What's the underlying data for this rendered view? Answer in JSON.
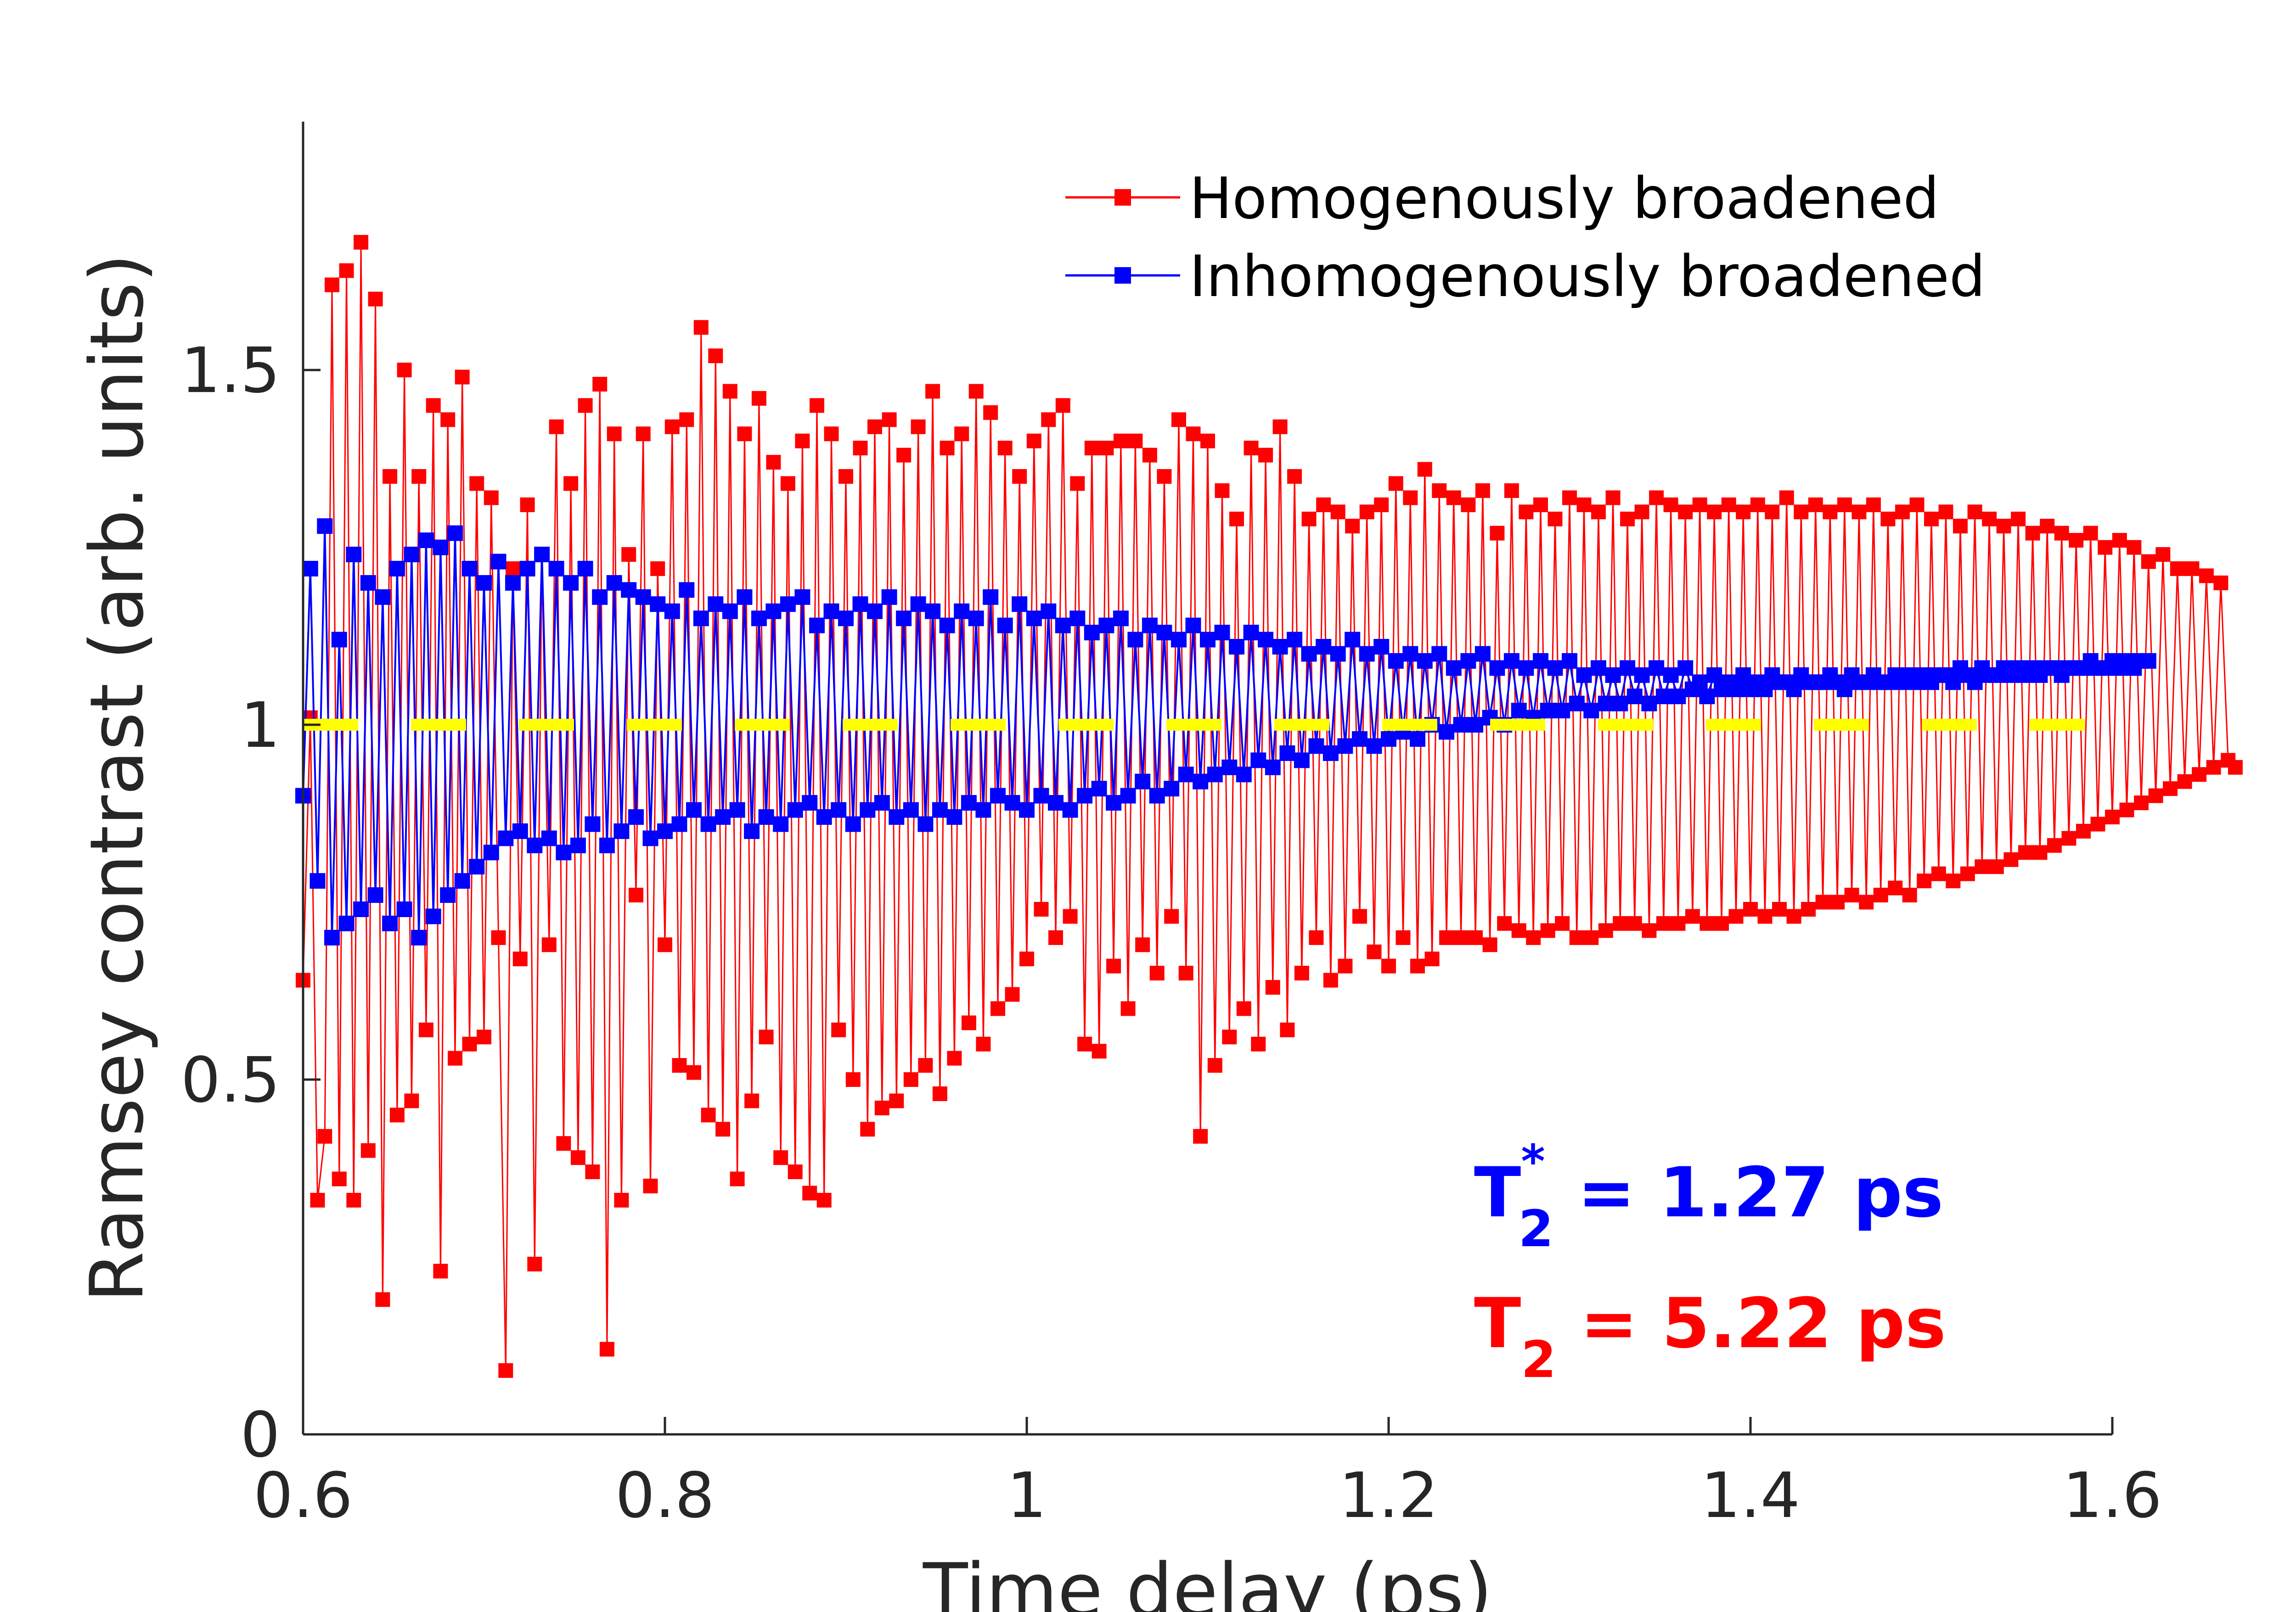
{
  "chart_data": {
    "type": "line",
    "xlabel": "Time delay (ps)",
    "ylabel": "Ramsey contrast (arb. units)",
    "xlim": [
      0.6,
      1.6
    ],
    "ylim": [
      0,
      1.85
    ],
    "x_ticks": [
      "0.6",
      "0.8",
      "1",
      "1.2",
      "1.4",
      "1.6"
    ],
    "y_ticks": [
      "0",
      "0.5",
      "1",
      "1.5"
    ],
    "x_tick_values": [
      0.6,
      0.8,
      1.0,
      1.2,
      1.4,
      1.6
    ],
    "y_tick_values": [
      0,
      0.5,
      1.0,
      1.5
    ],
    "grid": false,
    "legend_position": "top-right",
    "x_start": 0.6,
    "x_step": 0.004,
    "series": [
      {
        "name": "Homogenously broadened",
        "color": "#ff0000",
        "marker": "square",
        "values": [
          0.64,
          1.01,
          0.33,
          0.42,
          1.62,
          0.36,
          1.64,
          0.33,
          1.68,
          0.4,
          1.6,
          0.19,
          1.35,
          0.45,
          1.5,
          0.47,
          1.35,
          0.57,
          1.45,
          0.23,
          1.43,
          0.53,
          1.49,
          0.55,
          1.34,
          0.56,
          1.32,
          0.7,
          0.09,
          1.22,
          0.67,
          1.31,
          0.24,
          1.24,
          0.69,
          1.42,
          0.41,
          1.34,
          0.39,
          1.45,
          0.37,
          1.48,
          0.12,
          1.41,
          0.33,
          1.24,
          0.76,
          1.41,
          0.35,
          1.22,
          0.69,
          1.42,
          0.52,
          1.43,
          0.51,
          1.56,
          0.45,
          1.52,
          0.43,
          1.47,
          0.36,
          1.41,
          0.47,
          1.46,
          0.56,
          1.37,
          0.39,
          1.34,
          0.37,
          1.4,
          0.34,
          1.45,
          0.33,
          1.41,
          0.57,
          1.35,
          0.5,
          1.39,
          0.43,
          1.42,
          0.46,
          1.43,
          0.47,
          1.38,
          0.5,
          1.42,
          0.52,
          1.47,
          0.48,
          1.39,
          0.53,
          1.41,
          0.58,
          1.47,
          0.55,
          1.44,
          0.6,
          1.39,
          0.62,
          1.35,
          0.67,
          1.4,
          0.74,
          1.43,
          0.7,
          1.45,
          0.73,
          1.34,
          0.55,
          1.39,
          0.54,
          1.39,
          0.66,
          1.4,
          0.6,
          1.4,
          0.69,
          1.38,
          0.65,
          1.35,
          0.73,
          1.43,
          0.65,
          1.41,
          0.42,
          1.4,
          0.52,
          1.33,
          0.56,
          1.29,
          0.6,
          1.39,
          0.55,
          1.38,
          0.63,
          1.42,
          0.57,
          1.35,
          0.65,
          1.29,
          0.7,
          1.31,
          0.64,
          1.3,
          0.66,
          1.28,
          0.73,
          1.3,
          0.68,
          1.31,
          0.66,
          1.34,
          0.7,
          1.32,
          0.66,
          1.36,
          0.67,
          1.33,
          0.7,
          1.32,
          0.7,
          1.31,
          0.7,
          1.33,
          0.69,
          1.27,
          0.72,
          1.33,
          0.71,
          1.3,
          0.7,
          1.31,
          0.71,
          1.29,
          0.72,
          1.32,
          0.7,
          1.31,
          0.7,
          1.3,
          0.71,
          1.32,
          0.72,
          1.29,
          0.72,
          1.3,
          0.71,
          1.32,
          0.72,
          1.31,
          0.72,
          1.3,
          0.73,
          1.31,
          0.72,
          1.3,
          0.72,
          1.31,
          0.73,
          1.3,
          0.74,
          1.31,
          0.73,
          1.3,
          0.74,
          1.32,
          0.73,
          1.3,
          0.74,
          1.31,
          0.75,
          1.3,
          0.75,
          1.31,
          0.76,
          1.3,
          0.75,
          1.31,
          0.76,
          1.29,
          0.77,
          1.3,
          0.76,
          1.31,
          0.78,
          1.29,
          0.79,
          1.3,
          0.78,
          1.28,
          0.79,
          1.3,
          0.8,
          1.29,
          0.8,
          1.28,
          0.81,
          1.29,
          0.82,
          1.27,
          0.82,
          1.28,
          0.83,
          1.27,
          0.84,
          1.26,
          0.85,
          1.27,
          0.86,
          1.25,
          0.87,
          1.26,
          0.88,
          1.25,
          0.89,
          1.23,
          0.9,
          1.24,
          0.91,
          1.22,
          0.92,
          1.22,
          0.93,
          1.21,
          0.94,
          1.2,
          0.95,
          0.94
        ],
        "custom_values_note": ""
      },
      {
        "name": "Inhomogenously broadened",
        "color": "#0000ff",
        "marker": "square",
        "values": [
          0.9,
          1.22,
          0.78,
          1.28,
          0.7,
          1.12,
          0.72,
          1.24,
          0.74,
          1.2,
          0.76,
          1.18,
          0.72,
          1.22,
          0.74,
          1.24,
          0.7,
          1.26,
          0.73,
          1.25,
          0.76,
          1.27,
          0.78,
          1.22,
          0.8,
          1.2,
          0.82,
          1.23,
          0.84,
          1.2,
          0.85,
          1.22,
          0.83,
          1.24,
          0.84,
          1.22,
          0.82,
          1.2,
          0.83,
          1.22,
          0.86,
          1.18,
          0.83,
          1.2,
          0.85,
          1.19,
          0.87,
          1.18,
          0.84,
          1.17,
          0.85,
          1.16,
          0.86,
          1.19,
          0.88,
          1.15,
          0.86,
          1.17,
          0.87,
          1.16,
          0.88,
          1.18,
          0.85,
          1.15,
          0.87,
          1.16,
          0.86,
          1.17,
          0.88,
          1.18,
          0.89,
          1.14,
          0.87,
          1.16,
          0.88,
          1.15,
          0.86,
          1.17,
          0.88,
          1.16,
          0.89,
          1.18,
          0.87,
          1.15,
          0.88,
          1.17,
          0.86,
          1.16,
          0.88,
          1.14,
          0.87,
          1.16,
          0.89,
          1.15,
          0.88,
          1.18,
          0.9,
          1.14,
          0.89,
          1.17,
          0.88,
          1.15,
          0.9,
          1.16,
          0.89,
          1.14,
          0.88,
          1.15,
          0.9,
          1.13,
          0.91,
          1.14,
          0.89,
          1.15,
          0.9,
          1.12,
          0.92,
          1.14,
          0.9,
          1.13,
          0.91,
          1.12,
          0.93,
          1.14,
          0.92,
          1.12,
          0.93,
          1.13,
          0.94,
          1.11,
          0.93,
          1.13,
          0.95,
          1.12,
          0.94,
          1.11,
          0.96,
          1.12,
          0.95,
          1.1,
          0.97,
          1.11,
          0.96,
          1.1,
          0.97,
          1.12,
          0.98,
          1.1,
          0.97,
          1.11,
          0.98,
          1.09,
          0.99,
          1.1,
          0.98,
          1.09,
          1.0,
          1.1,
          0.99,
          1.08,
          1.0,
          1.09,
          1.0,
          1.1,
          1.01,
          1.08,
          1.0,
          1.09,
          1.02,
          1.08,
          1.01,
          1.09,
          1.02,
          1.08,
          1.02,
          1.09,
          1.03,
          1.07,
          1.02,
          1.08,
          1.03,
          1.07,
          1.03,
          1.08,
          1.04,
          1.07,
          1.03,
          1.08,
          1.04,
          1.07,
          1.04,
          1.08,
          1.05,
          1.06,
          1.04,
          1.07,
          1.05,
          1.06,
          1.05,
          1.07,
          1.05,
          1.06,
          1.05,
          1.07,
          1.06,
          1.06,
          1.05,
          1.07,
          1.06,
          1.06,
          1.06,
          1.07,
          1.06,
          1.05,
          1.07,
          1.06,
          1.06,
          1.07,
          1.06,
          1.06,
          1.07,
          1.06,
          1.07,
          1.06,
          1.07,
          1.06,
          1.07,
          1.07,
          1.06,
          1.08,
          1.07,
          1.06,
          1.08,
          1.07,
          1.07,
          1.08,
          1.07,
          1.08,
          1.07,
          1.08,
          1.07,
          1.08,
          1.08,
          1.07,
          1.08,
          1.08,
          1.08,
          1.09,
          1.08,
          1.08,
          1.09,
          1.08,
          1.09,
          1.08,
          1.09,
          1.09
        ]
      }
    ],
    "reference_line": {
      "y": 1.0,
      "color": "#ffff00",
      "style": "dashed"
    },
    "annotations": [
      {
        "base": "T",
        "superscript": "*",
        "subscript": "2",
        "rest": " = 1.27 ps",
        "color": "#0000ff"
      },
      {
        "base": "T",
        "superscript": "",
        "subscript": "2",
        "rest": " = 5.22 ps",
        "color": "#ff0000"
      }
    ]
  }
}
